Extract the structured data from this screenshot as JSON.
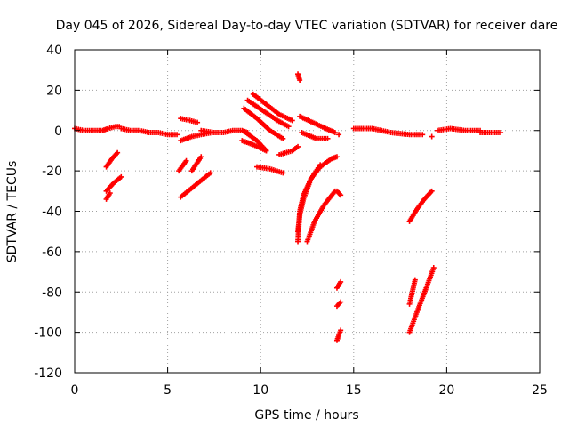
{
  "colors": {
    "series": "#ff0000",
    "grid": "#a0a0a0",
    "axis": "#000000",
    "background": "#ffffff"
  },
  "chart_data": {
    "type": "scatter",
    "title": "Day 045 of 2026, Sidereal Day-to-day VTEC variation (SDTVAR) for receiver dare",
    "xlabel": "GPS time / hours",
    "ylabel": "SDTVAR / TECUs",
    "xlim": [
      0,
      25
    ],
    "ylim": [
      -120,
      40
    ],
    "x_ticks": [
      0,
      5,
      10,
      15,
      20,
      25
    ],
    "y_ticks": [
      -120,
      -100,
      -80,
      -60,
      -40,
      -20,
      0,
      20,
      40
    ],
    "grid": true,
    "marker": "+",
    "series": [
      {
        "name": "SDTVAR",
        "tracks": [
          {
            "x": [
              0.0,
              0.5,
              1.0,
              1.5,
              1.8,
              2.2,
              2.4
            ],
            "y": [
              1,
              0,
              0,
              0,
              1,
              2,
              2
            ]
          },
          {
            "x": [
              2.5,
              3.0,
              3.5,
              4.0,
              4.5,
              5.0,
              5.5
            ],
            "y": [
              1,
              0,
              0,
              -1,
              -1,
              -2,
              -2
            ]
          },
          {
            "x": [
              5.7,
              6.2,
              6.6
            ],
            "y": [
              6,
              5,
              4
            ]
          },
          {
            "x": [
              5.7,
              6.3,
              6.8,
              7.4
            ],
            "y": [
              -5,
              -3,
              -2,
              -1
            ]
          },
          {
            "x": [
              6.8,
              7.5,
              8.0,
              8.5,
              9.0,
              9.3
            ],
            "y": [
              0,
              -1,
              -1,
              0,
              0,
              -1
            ]
          },
          {
            "x": [
              15.0,
              16.0,
              17.0,
              18.0,
              18.7
            ],
            "y": [
              1,
              1,
              -1,
              -2,
              -2
            ]
          },
          {
            "x": [
              19.5,
              20.2,
              21.0,
              21.8
            ],
            "y": [
              0,
              1,
              0,
              0
            ]
          },
          {
            "x": [
              21.8,
              22.3,
              22.9
            ],
            "y": [
              -1,
              -1,
              -1
            ]
          },
          {
            "x": [
              1.7,
              2.0,
              2.3
            ],
            "y": [
              -18,
              -14,
              -11
            ]
          },
          {
            "x": [
              1.7,
              2.1,
              2.5
            ],
            "y": [
              -30,
              -26,
              -23
            ]
          },
          {
            "x": [
              1.7,
              1.9
            ],
            "y": [
              -34,
              -31
            ]
          },
          {
            "x": [
              5.6,
              6.0
            ],
            "y": [
              -20,
              -15
            ]
          },
          {
            "x": [
              6.3,
              6.8
            ],
            "y": [
              -20,
              -13
            ]
          },
          {
            "x": [
              5.7,
              6.5,
              7.3
            ],
            "y": [
              -33,
              -27,
              -21
            ]
          },
          {
            "x": [
              9.0,
              9.6,
              10.3
            ],
            "y": [
              -5,
              -7,
              -10
            ]
          },
          {
            "x": [
              9.2,
              9.8,
              10.3
            ],
            "y": [
              -1,
              -5,
              -10
            ]
          },
          {
            "x": [
              9.1,
              9.8,
              10.5,
              11.2
            ],
            "y": [
              11,
              6,
              0,
              -4
            ]
          },
          {
            "x": [
              9.3,
              10.1,
              10.9,
              11.5
            ],
            "y": [
              15,
              10,
              5,
              2
            ]
          },
          {
            "x": [
              9.6,
              10.3,
              11.0,
              11.7
            ],
            "y": [
              18,
              13,
              8,
              5
            ]
          },
          {
            "x": [
              9.8,
              10.5,
              11.2
            ],
            "y": [
              -18,
              -19,
              -21
            ]
          },
          {
            "x": [
              11.0,
              11.7,
              12.0
            ],
            "y": [
              -12,
              -10,
              -8
            ]
          },
          {
            "x": [
              12.0,
              12.1
            ],
            "y": [
              28,
              25
            ]
          },
          {
            "x": [
              12.1,
              12.8,
              13.5,
              14.0
            ],
            "y": [
              7,
              4,
              1,
              -1
            ]
          },
          {
            "x": [
              12.2,
              13.0,
              13.6
            ],
            "y": [
              -1,
              -4,
              -4
            ]
          },
          {
            "x": [
              12.0,
              12.1,
              12.3,
              12.7,
              13.2,
              13.8,
              14.1
            ],
            "y": [
              -55,
              -40,
              -32,
              -24,
              -18,
              -14,
              -13
            ]
          },
          {
            "x": [
              12.0,
              12.1,
              12.3,
              12.7,
              13.2
            ],
            "y": [
              -50,
              -42,
              -34,
              -24,
              -17
            ]
          },
          {
            "x": [
              12.5,
              12.9,
              13.4,
              14.0
            ],
            "y": [
              -55,
              -45,
              -37,
              -30
            ]
          },
          {
            "x": [
              14.1,
              14.3
            ],
            "y": [
              -30,
              -32
            ]
          },
          {
            "x": [
              14.1,
              14.3
            ],
            "y": [
              -78,
              -75
            ]
          },
          {
            "x": [
              14.1,
              14.3
            ],
            "y": [
              -87,
              -85
            ]
          },
          {
            "x": [
              14.1,
              14.3
            ],
            "y": [
              -104,
              -99
            ]
          },
          {
            "x": [
              14.2
            ],
            "y": [
              -2
            ]
          },
          {
            "x": [
              18.0,
              18.4,
              18.8,
              19.2
            ],
            "y": [
              -45,
              -39,
              -34,
              -30
            ]
          },
          {
            "x": [
              18.0,
              18.3
            ],
            "y": [
              -86,
              -74
            ]
          },
          {
            "x": [
              18.0,
              18.4,
              18.9,
              19.3
            ],
            "y": [
              -100,
              -90,
              -78,
              -68
            ]
          },
          {
            "x": [
              19.2
            ],
            "y": [
              -3
            ]
          }
        ]
      }
    ]
  }
}
